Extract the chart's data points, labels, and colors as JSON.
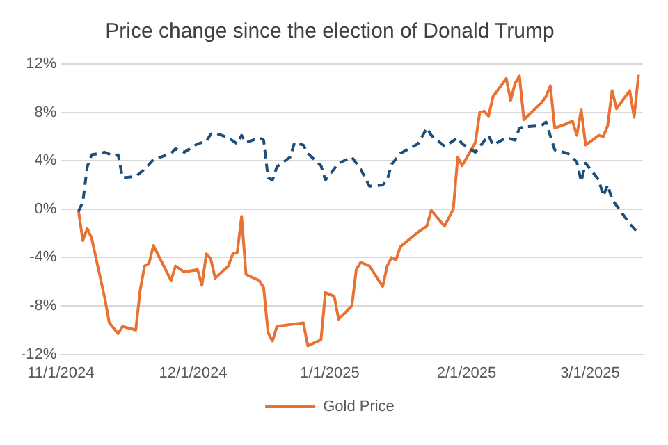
{
  "chart_data": {
    "type": "line",
    "title": "Price change since the election of Donald Trump",
    "xlim": [
      "2024-11-01",
      "2025-03-13"
    ],
    "xticks": [
      {
        "value": "2024-11-01",
        "label": "11/1/2024"
      },
      {
        "value": "2024-12-01",
        "label": "12/1/2024"
      },
      {
        "value": "2025-01-01",
        "label": "1/1/2025"
      },
      {
        "value": "2025-02-01",
        "label": "2/1/2025"
      },
      {
        "value": "2025-03-01",
        "label": "3/1/2025"
      }
    ],
    "ylim": [
      -12,
      12
    ],
    "yticks": [
      {
        "value": -12,
        "label": "-12%"
      },
      {
        "value": -8,
        "label": "-8%"
      },
      {
        "value": -4,
        "label": "-4%"
      },
      {
        "value": 0,
        "label": "0%"
      },
      {
        "value": 4,
        "label": "4%"
      },
      {
        "value": 8,
        "label": "8%"
      },
      {
        "value": 12,
        "label": "12%"
      }
    ],
    "grid": "y",
    "legend": "bottom",
    "marker": "none",
    "series": [
      {
        "color": "#1f4e79",
        "line_style": "dashed",
        "x": [
          "2024-11-05",
          "2024-11-06",
          "2024-11-07",
          "2024-11-08",
          "2024-11-11",
          "2024-11-13",
          "2024-11-14",
          "2024-11-15",
          "2024-11-18",
          "2024-11-20",
          "2024-11-22",
          "2024-11-26",
          "2024-11-27",
          "2024-11-29",
          "2024-12-02",
          "2024-12-04",
          "2024-12-05",
          "2024-12-06",
          "2024-12-09",
          "2024-12-11",
          "2024-12-12",
          "2024-12-13",
          "2024-12-16",
          "2024-12-17",
          "2024-12-18",
          "2024-12-19",
          "2024-12-20",
          "2024-12-23",
          "2024-12-24",
          "2024-12-26",
          "2024-12-27",
          "2024-12-30",
          "2024-12-31",
          "2025-01-03",
          "2025-01-06",
          "2025-01-08",
          "2025-01-10",
          "2025-01-13",
          "2025-01-14",
          "2025-01-15",
          "2025-01-17",
          "2025-01-21",
          "2025-01-23",
          "2025-01-24",
          "2025-01-27",
          "2025-01-28",
          "2025-01-30",
          "2025-01-31",
          "2025-02-03",
          "2025-02-06",
          "2025-02-07",
          "2025-02-10",
          "2025-02-12",
          "2025-02-13",
          "2025-02-14",
          "2025-02-18",
          "2025-02-19",
          "2025-02-21",
          "2025-02-24",
          "2025-02-26",
          "2025-02-27",
          "2025-02-28",
          "2025-03-03",
          "2025-03-04",
          "2025-03-05",
          "2025-03-06",
          "2025-03-10",
          "2025-03-11",
          "2025-03-12"
        ],
        "values": [
          -0.2,
          0.6,
          3.5,
          4.5,
          4.7,
          4.4,
          4.5,
          2.6,
          2.7,
          3.3,
          4.1,
          4.6,
          5.0,
          4.7,
          5.4,
          5.6,
          6.2,
          6.3,
          5.9,
          5.4,
          6.1,
          5.5,
          5.9,
          5.7,
          2.6,
          2.4,
          3.5,
          4.3,
          5.5,
          5.3,
          4.6,
          3.6,
          2.4,
          3.8,
          4.3,
          3.3,
          1.9,
          2.0,
          2.4,
          3.7,
          4.6,
          5.4,
          6.7,
          6.1,
          5.2,
          5.4,
          5.9,
          5.4,
          4.7,
          6.1,
          5.3,
          5.9,
          5.7,
          6.7,
          6.8,
          6.9,
          7.2,
          4.9,
          4.6,
          3.9,
          2.3,
          3.8,
          2.4,
          1.1,
          2.0,
          0.8,
          -1.2,
          -1.6,
          -2.0
        ]
      },
      {
        "name": "Gold Price",
        "color": "#e97132",
        "line_style": "solid",
        "x": [
          "2024-11-05",
          "2024-11-06",
          "2024-11-07",
          "2024-11-08",
          "2024-11-11",
          "2024-11-12",
          "2024-11-14",
          "2024-11-15",
          "2024-11-18",
          "2024-11-19",
          "2024-11-20",
          "2024-11-21",
          "2024-11-22",
          "2024-11-26",
          "2024-11-27",
          "2024-11-29",
          "2024-12-02",
          "2024-12-03",
          "2024-12-04",
          "2024-12-05",
          "2024-12-06",
          "2024-12-09",
          "2024-12-10",
          "2024-12-11",
          "2024-12-12",
          "2024-12-13",
          "2024-12-16",
          "2024-12-17",
          "2024-12-18",
          "2024-12-19",
          "2024-12-20",
          "2024-12-26",
          "2024-12-27",
          "2024-12-30",
          "2024-12-31",
          "2025-01-02",
          "2025-01-03",
          "2025-01-06",
          "2025-01-07",
          "2025-01-08",
          "2025-01-10",
          "2025-01-13",
          "2025-01-14",
          "2025-01-15",
          "2025-01-16",
          "2025-01-17",
          "2025-01-21",
          "2025-01-23",
          "2025-01-24",
          "2025-01-27",
          "2025-01-29",
          "2025-01-30",
          "2025-01-31",
          "2025-02-03",
          "2025-02-04",
          "2025-02-05",
          "2025-02-06",
          "2025-02-07",
          "2025-02-10",
          "2025-02-11",
          "2025-02-12",
          "2025-02-13",
          "2025-02-14",
          "2025-02-18",
          "2025-02-19",
          "2025-02-20",
          "2025-02-21",
          "2025-02-24",
          "2025-02-25",
          "2025-02-26",
          "2025-02-27",
          "2025-02-28",
          "2025-03-03",
          "2025-03-04",
          "2025-03-05",
          "2025-03-06",
          "2025-03-07",
          "2025-03-10",
          "2025-03-11",
          "2025-03-12"
        ],
        "values": [
          -0.1,
          -2.6,
          -1.6,
          -2.4,
          -7.4,
          -9.4,
          -10.3,
          -9.7,
          -10.0,
          -6.7,
          -4.7,
          -4.5,
          -3.0,
          -5.9,
          -4.7,
          -5.2,
          -5.0,
          -6.3,
          -3.7,
          -4.1,
          -5.7,
          -4.7,
          -3.7,
          -3.6,
          -0.6,
          -5.4,
          -5.9,
          -6.5,
          -10.2,
          -10.9,
          -9.7,
          -9.4,
          -11.3,
          -10.8,
          -6.9,
          -7.2,
          -9.1,
          -8.0,
          -5.0,
          -4.4,
          -4.7,
          -6.4,
          -4.7,
          -4.0,
          -4.2,
          -3.1,
          -1.9,
          -1.4,
          -0.1,
          -1.4,
          0.0,
          4.3,
          3.6,
          5.5,
          8.0,
          8.1,
          7.7,
          9.3,
          10.8,
          9.0,
          10.4,
          11.0,
          7.4,
          8.8,
          9.3,
          10.2,
          6.7,
          7.1,
          7.3,
          6.1,
          8.2,
          5.3,
          6.1,
          6.0,
          6.9,
          9.8,
          8.3,
          9.8,
          7.6,
          11.1
        ]
      }
    ]
  }
}
